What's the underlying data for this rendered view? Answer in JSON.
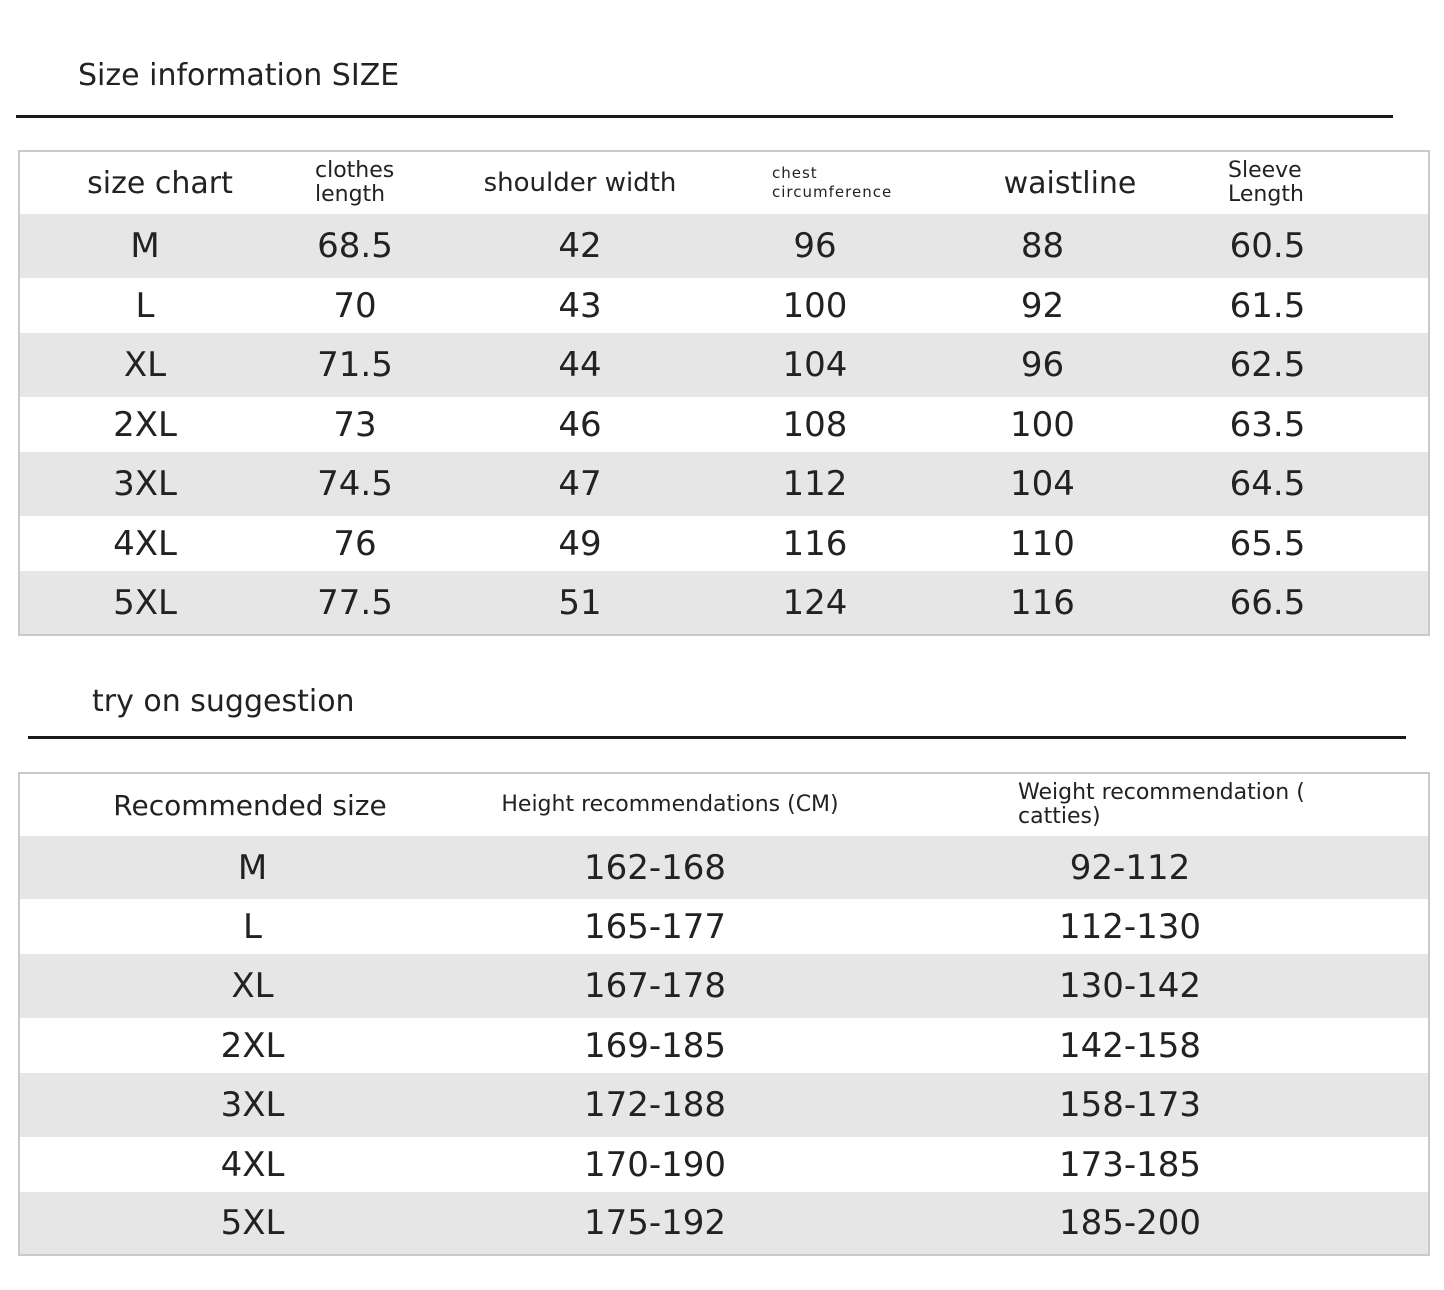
{
  "size_section": {
    "title": "Size information SIZE",
    "headers": {
      "size": "size chart",
      "clothes_length_1": "clothes",
      "clothes_length_2": "length",
      "shoulder": "shoulder width",
      "chest_1": "chest",
      "chest_2": "circumference",
      "waist": "waistline",
      "sleeve_1": "Sleeve",
      "sleeve_2": "Length"
    },
    "rows": [
      {
        "size": "M",
        "length": "68.5",
        "shoulder": "42",
        "chest": "96",
        "waist": "88",
        "sleeve": "60.5"
      },
      {
        "size": "L",
        "length": "70",
        "shoulder": "43",
        "chest": "100",
        "waist": "92",
        "sleeve": "61.5"
      },
      {
        "size": "XL",
        "length": "71.5",
        "shoulder": "44",
        "chest": "104",
        "waist": "96",
        "sleeve": "62.5"
      },
      {
        "size": "2XL",
        "length": "73",
        "shoulder": "46",
        "chest": "108",
        "waist": "100",
        "sleeve": "63.5"
      },
      {
        "size": "3XL",
        "length": "74.5",
        "shoulder": "47",
        "chest": "112",
        "waist": "104",
        "sleeve": "64.5"
      },
      {
        "size": "4XL",
        "length": "76",
        "shoulder": "49",
        "chest": "116",
        "waist": "110",
        "sleeve": "65.5"
      },
      {
        "size": "5XL",
        "length": "77.5",
        "shoulder": "51",
        "chest": "124",
        "waist": "116",
        "sleeve": "66.5"
      }
    ]
  },
  "suggestion_section": {
    "title": "try on suggestion",
    "headers": {
      "size": "Recommended size",
      "height": "Height recommendations (CM)",
      "weight_1": "Weight recommendation (",
      "weight_2": "catties)"
    },
    "rows": [
      {
        "size": "M",
        "height": "162-168",
        "weight": "92-112"
      },
      {
        "size": "L",
        "height": "165-177",
        "weight": "112-130"
      },
      {
        "size": "XL",
        "height": "167-178",
        "weight": "130-142"
      },
      {
        "size": "2XL",
        "height": "169-185",
        "weight": "142-158"
      },
      {
        "size": "3XL",
        "height": "172-188",
        "weight": "158-173"
      },
      {
        "size": "4XL",
        "height": "170-190",
        "weight": "173-185"
      },
      {
        "size": "5XL",
        "height": "175-192",
        "weight": "185-200"
      }
    ]
  },
  "colors": {
    "shaded_row": "#e6e6e6",
    "border": "#c9c9c9",
    "rule": "#1a1a1a"
  }
}
